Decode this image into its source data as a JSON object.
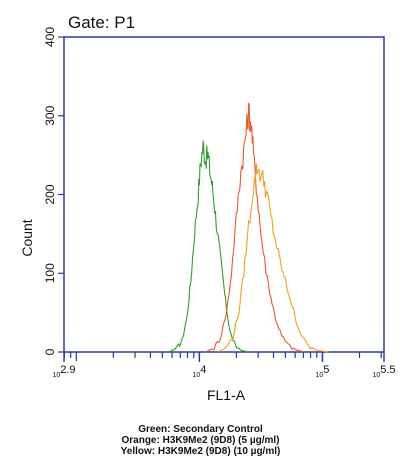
{
  "chart_data": {
    "type": "line",
    "title": "Gate: P1",
    "xlabel": "FL1-A",
    "ylabel": "Count",
    "x_scale": "log10",
    "xlim": [
      2.9,
      5.5
    ],
    "ylim": [
      0,
      400
    ],
    "y_ticks": [
      0,
      100,
      200,
      300,
      400
    ],
    "x_tick_labels": [
      {
        "value": 2.9,
        "base": "10",
        "exp": "2.9"
      },
      {
        "value": 4,
        "base": "10",
        "exp": "4"
      },
      {
        "value": 5,
        "base": "10",
        "exp": "5"
      },
      {
        "value": 5.5,
        "base": "10",
        "exp": "5.5"
      }
    ],
    "series": [
      {
        "name": "Secondary Control",
        "color": "#2aa02a",
        "points": [
          [
            3.75,
            0
          ],
          [
            3.82,
            5
          ],
          [
            3.86,
            15
          ],
          [
            3.9,
            45
          ],
          [
            3.93,
            90
          ],
          [
            3.96,
            150
          ],
          [
            3.99,
            200
          ],
          [
            4.01,
            240
          ],
          [
            4.03,
            262
          ],
          [
            4.05,
            245
          ],
          [
            4.07,
            250
          ],
          [
            4.09,
            225
          ],
          [
            4.11,
            205
          ],
          [
            4.13,
            175
          ],
          [
            4.16,
            135
          ],
          [
            4.19,
            95
          ],
          [
            4.22,
            55
          ],
          [
            4.25,
            25
          ],
          [
            4.29,
            8
          ],
          [
            4.34,
            2
          ],
          [
            4.4,
            0
          ]
        ]
      },
      {
        "name": "H3K9Me2 (9D8) (5 µg/ml)",
        "color": "#e85a28",
        "points": [
          [
            4.05,
            0
          ],
          [
            4.12,
            5
          ],
          [
            4.17,
            18
          ],
          [
            4.22,
            50
          ],
          [
            4.26,
            100
          ],
          [
            4.3,
            170
          ],
          [
            4.33,
            220
          ],
          [
            4.36,
            255
          ],
          [
            4.38,
            280
          ],
          [
            4.4,
            305
          ],
          [
            4.42,
            290
          ],
          [
            4.44,
            250
          ],
          [
            4.47,
            200
          ],
          [
            4.5,
            150
          ],
          [
            4.54,
            105
          ],
          [
            4.58,
            70
          ],
          [
            4.62,
            42
          ],
          [
            4.67,
            20
          ],
          [
            4.72,
            9
          ],
          [
            4.78,
            3
          ],
          [
            4.85,
            0
          ]
        ]
      },
      {
        "name": "H3K9Me2 (9D8) (10 µg/ml)",
        "color": "#f0a020",
        "points": [
          [
            4.15,
            0
          ],
          [
            4.22,
            6
          ],
          [
            4.27,
            18
          ],
          [
            4.32,
            50
          ],
          [
            4.36,
            100
          ],
          [
            4.4,
            160
          ],
          [
            4.44,
            210
          ],
          [
            4.47,
            235
          ],
          [
            4.5,
            225
          ],
          [
            4.53,
            215
          ],
          [
            4.56,
            190
          ],
          [
            4.6,
            155
          ],
          [
            4.64,
            125
          ],
          [
            4.68,
            100
          ],
          [
            4.72,
            78
          ],
          [
            4.76,
            55
          ],
          [
            4.8,
            32
          ],
          [
            4.85,
            15
          ],
          [
            4.9,
            6
          ],
          [
            4.96,
            2
          ],
          [
            5.05,
            0
          ]
        ]
      }
    ],
    "colors": {
      "axis": "#2a3aa0",
      "text": "#111111",
      "background": "#ffffff"
    }
  },
  "legend": {
    "line1": "Green: Secondary Control",
    "line2": "Orange: H3K9Me2 (9D8) (5 µg/ml)",
    "line3": "Yellow: H3K9Me2 (9D8) (10 µg/ml)"
  }
}
